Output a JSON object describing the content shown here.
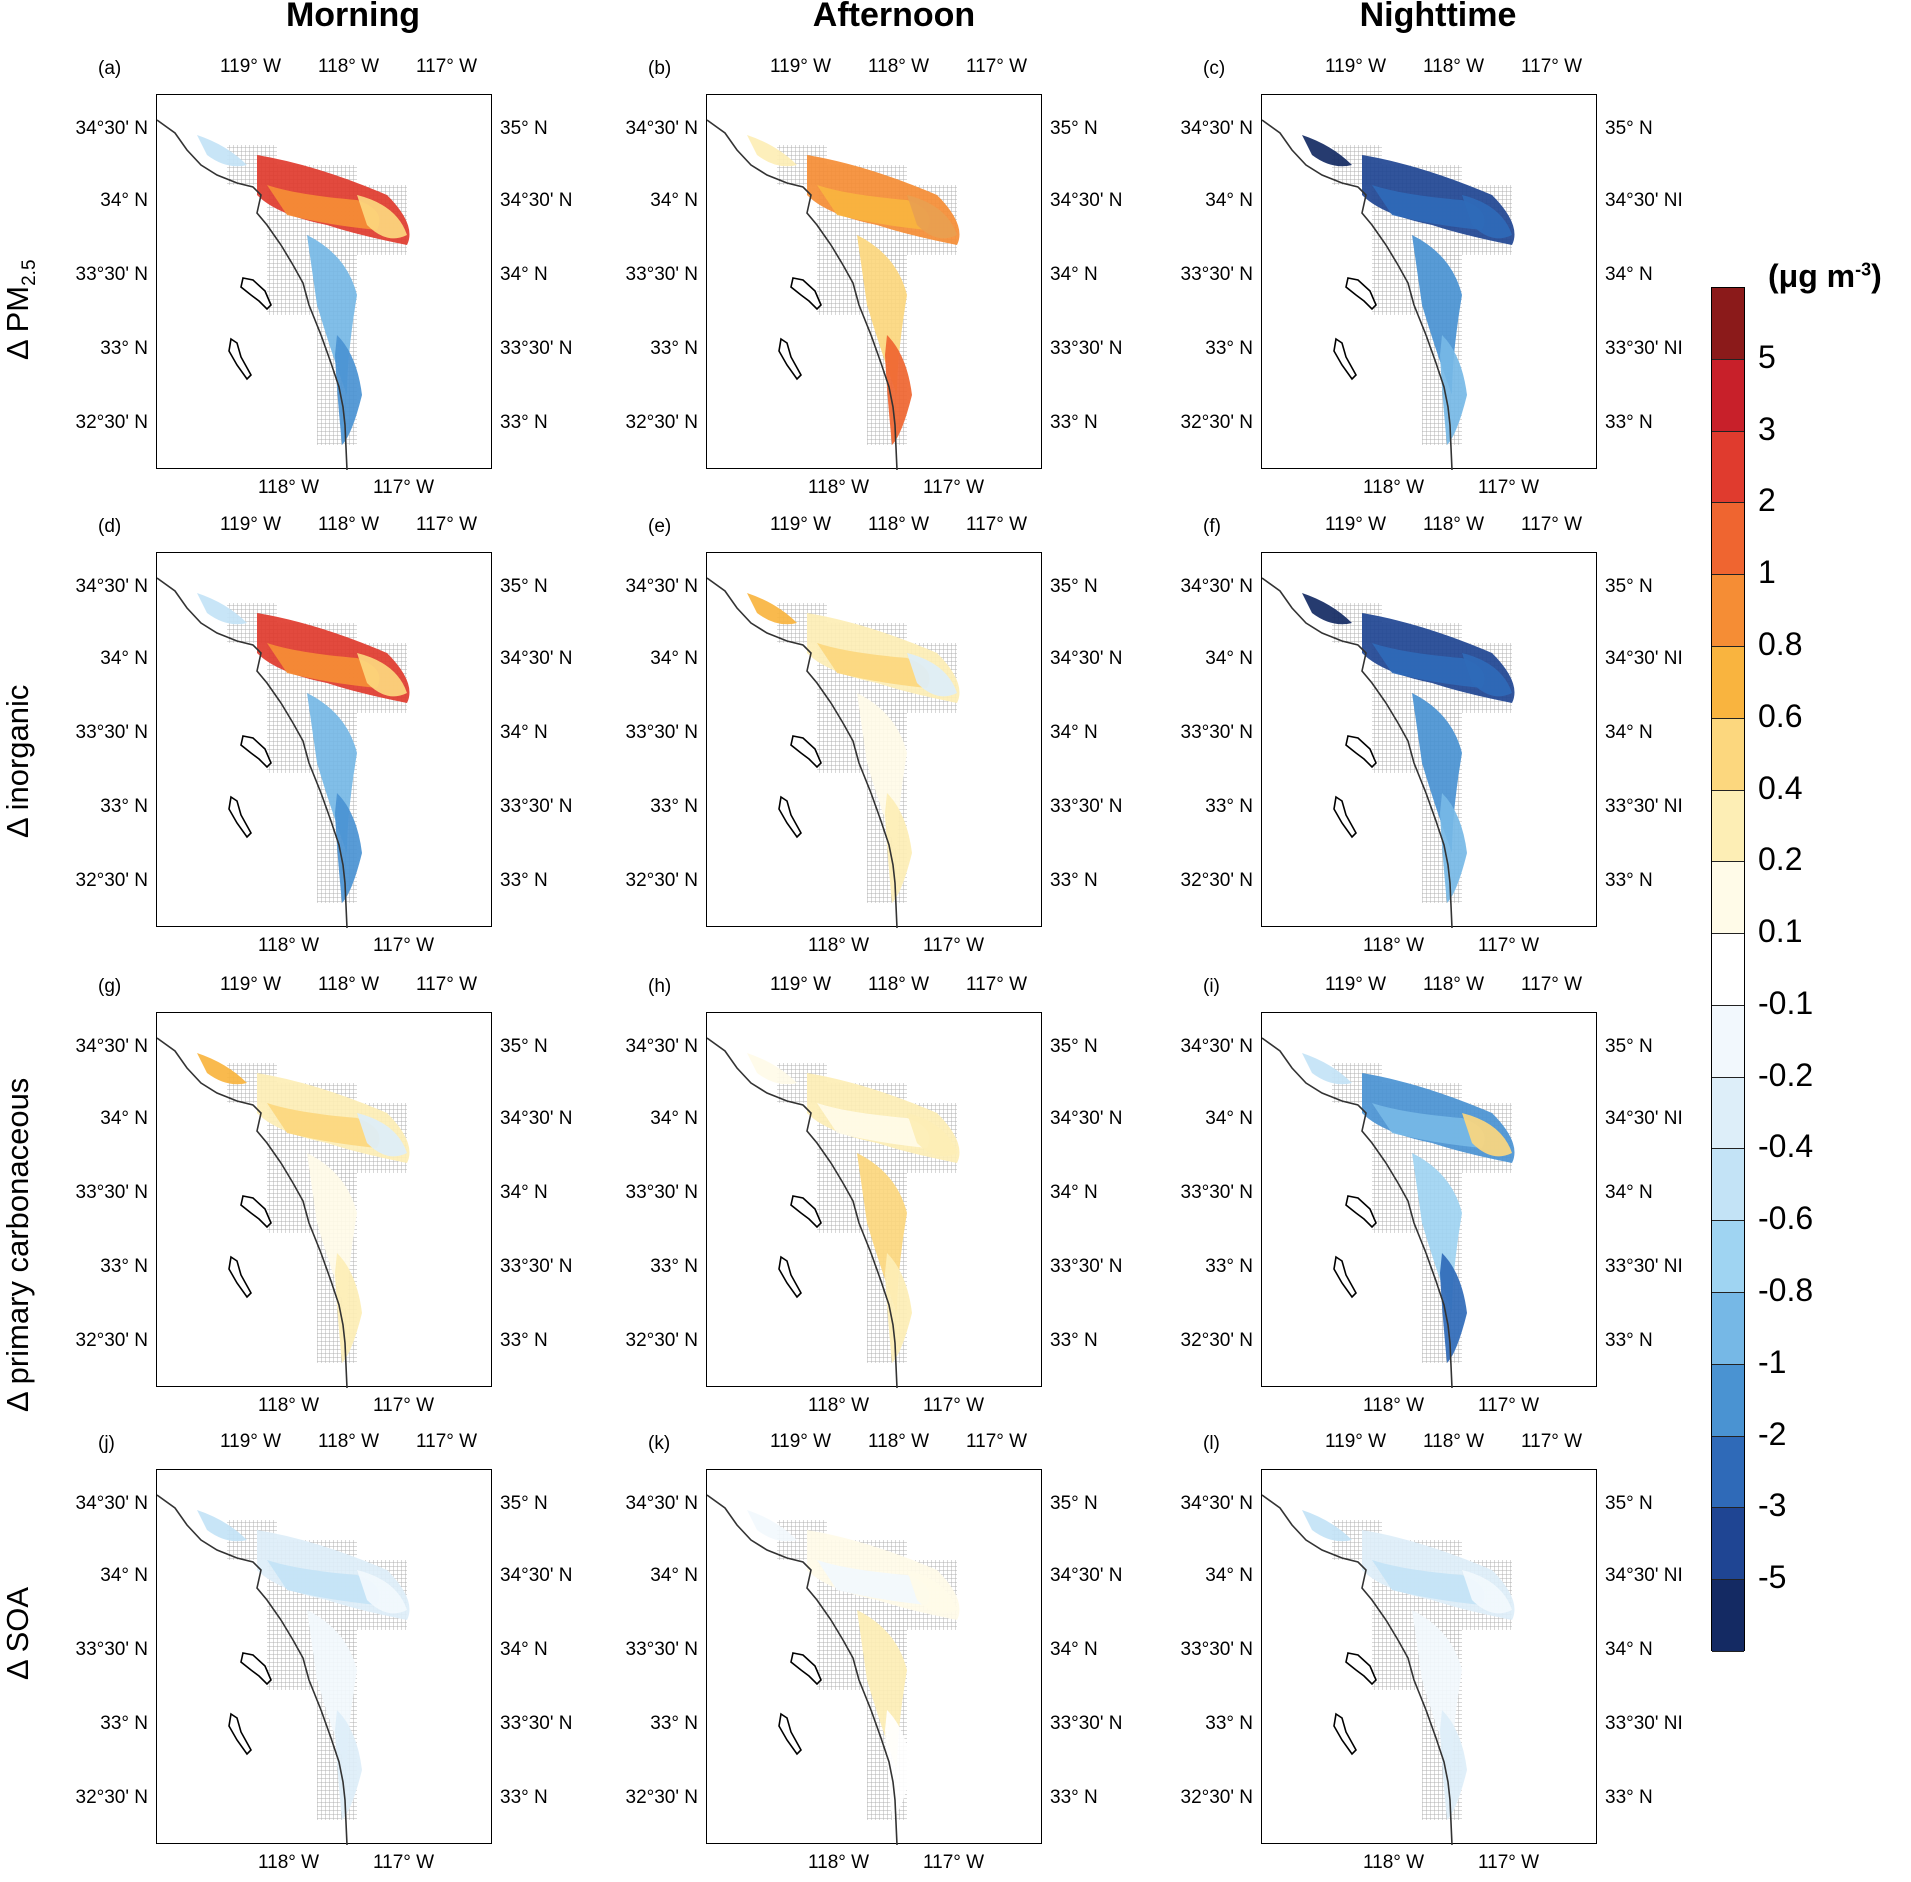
{
  "column_titles": [
    "Morning",
    "Afternoon",
    "Nighttime"
  ],
  "row_labels": [
    {
      "prefix": "Δ PM",
      "sub": "2.5"
    },
    {
      "prefix": "Δ inorganic",
      "sub": ""
    },
    {
      "prefix": "Δ primary carbonaceous",
      "sub": ""
    },
    {
      "prefix": "Δ SOA",
      "sub": ""
    }
  ],
  "panel_labels": [
    "(a)",
    "(b)",
    "(c)",
    "(d)",
    "(e)",
    "(f)",
    "(g)",
    "(h)",
    "(i)",
    "(j)",
    "(k)",
    "(l)"
  ],
  "top_lon_ticks": [
    "119° W",
    "118° W",
    "117° W"
  ],
  "bottom_lon_ticks": [
    "118° W",
    "117° W"
  ],
  "left_lat_ticks": [
    "34°30' N",
    "34° N",
    "33°30' N",
    "33° N",
    "32°30' N"
  ],
  "right_lat_ticks_col12": [
    "35° N",
    "34°30' N",
    "34° N",
    "33°30' N",
    "33° N"
  ],
  "right_lat_ticks_col3": [
    "35° N",
    "34°30' NI",
    "34° N",
    "33°30' NI",
    "33° N"
  ],
  "colorbar": {
    "unit_text": "(μg  m",
    "unit_sup": "-3",
    "unit_close": ")",
    "labels": [
      "5",
      "3",
      "2",
      "1",
      "0.8",
      "0.6",
      "0.4",
      "0.2",
      "0.1",
      "-0.1",
      "-0.2",
      "-0.4",
      "-0.6",
      "-0.8",
      "-1",
      "-2",
      "-3",
      "-5"
    ],
    "colors": [
      "#8b1a1a",
      "#c8202a",
      "#e03b2e",
      "#ef6530",
      "#f58d35",
      "#f9b43f",
      "#fcd77e",
      "#fdeeb5",
      "#fffbe8",
      "#ffffff",
      "#f2f8fd",
      "#ddeef9",
      "#c3e3f6",
      "#9fd4f2",
      "#76b8e6",
      "#4a93d2",
      "#2f6ab8",
      "#1f4593",
      "#142a63"
    ]
  },
  "panels": [
    {
      "id": "a",
      "dominant": "mixed-warm-cool"
    },
    {
      "id": "b",
      "dominant": "warm"
    },
    {
      "id": "c",
      "dominant": "cool-strong"
    },
    {
      "id": "d",
      "dominant": "mixed-warm-cool"
    },
    {
      "id": "e",
      "dominant": "grey-light-warm"
    },
    {
      "id": "f",
      "dominant": "cool-strong"
    },
    {
      "id": "g",
      "dominant": "grey-light-warm"
    },
    {
      "id": "h",
      "dominant": "light-warm"
    },
    {
      "id": "i",
      "dominant": "cool"
    },
    {
      "id": "j",
      "dominant": "light-cool"
    },
    {
      "id": "k",
      "dominant": "grey"
    },
    {
      "id": "l",
      "dominant": "light-cool"
    }
  ]
}
